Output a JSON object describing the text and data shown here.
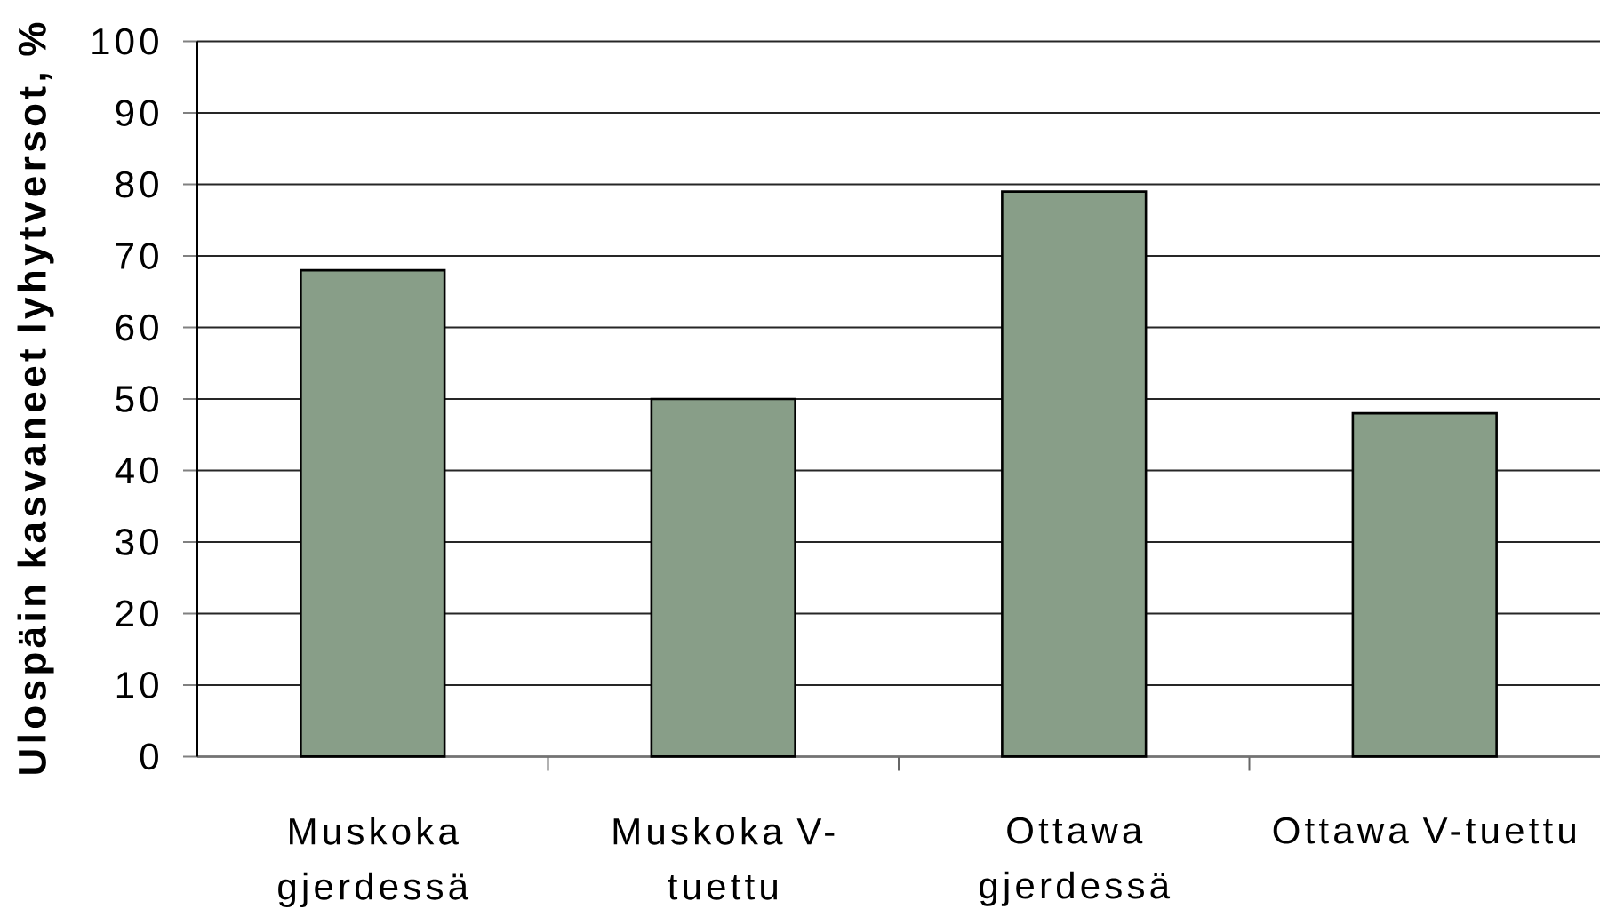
{
  "chart_data": {
    "type": "bar",
    "ylabel": "Ulospäin kasvaneet lyhytversot, %",
    "categories": [
      "Muskoka gjerdessä",
      "Muskoka V-tuettu",
      "Ottawa gjerdessä",
      "Ottawa V-tuettu"
    ],
    "values": [
      68,
      50,
      79,
      48
    ],
    "color": "#889e88",
    "ylim": [
      0,
      100
    ],
    "yticks": [
      0,
      10,
      20,
      30,
      40,
      50,
      60,
      70,
      80,
      90,
      100
    ],
    "grid": "y"
  }
}
